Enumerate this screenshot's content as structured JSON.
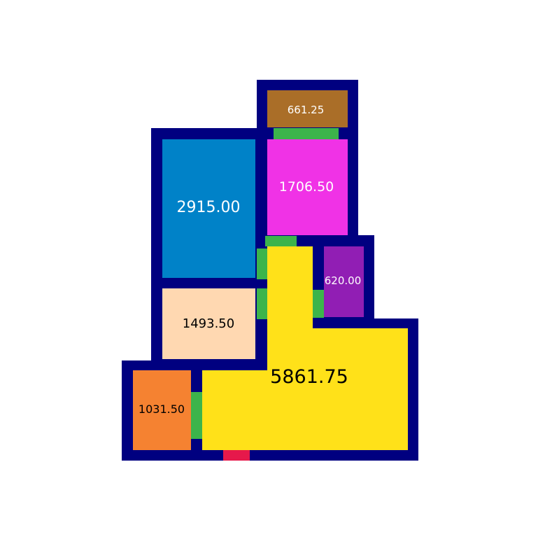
{
  "colors": {
    "wall": "#000080",
    "door": "#3cb44b",
    "entrance": "#e6194b",
    "background": "#ffffff"
  },
  "rooms": [
    {
      "id": "storage",
      "label": "661.25",
      "color": "#aa6e28",
      "text_color": "#ffffff"
    },
    {
      "id": "bedroom-main",
      "label": "2915.00",
      "color": "#0082c8",
      "text_color": "#ffffff"
    },
    {
      "id": "bathroom",
      "label": "1706.50",
      "color": "#f032e6",
      "text_color": "#ffffff"
    },
    {
      "id": "small-room",
      "label": "620.00",
      "color": "#911eb4",
      "text_color": "#ffffff"
    },
    {
      "id": "bedroom-2",
      "label": "1493.50",
      "color": "#ffd8b1",
      "text_color": "#000000"
    },
    {
      "id": "living",
      "label": "5861.75",
      "color": "#ffe119",
      "text_color": "#000000"
    },
    {
      "id": "kitchen",
      "label": "1031.50",
      "color": "#f58231",
      "text_color": "#000000"
    }
  ]
}
